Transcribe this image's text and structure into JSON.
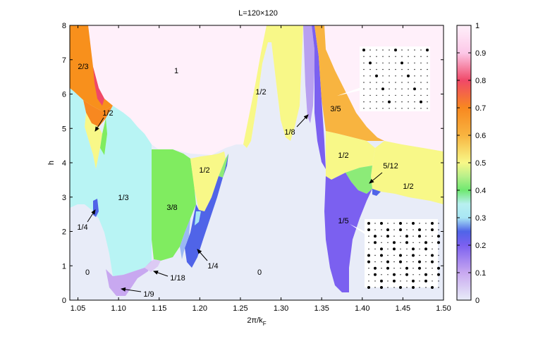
{
  "chart_data": {
    "type": "heatmap",
    "title": "L=120×120",
    "xlabel_main": "2π/k",
    "xlabel_sub": "F",
    "ylabel": "h",
    "xlim": [
      1.04,
      1.5
    ],
    "ylim": [
      0,
      8
    ],
    "x_ticks": [
      "1.05",
      "1.10",
      "1.15",
      "1.20",
      "1.25",
      "1.30",
      "1.35",
      "1.40",
      "1.45",
      "1.50"
    ],
    "y_ticks": [
      "0",
      "1",
      "2",
      "3",
      "4",
      "5",
      "6",
      "7",
      "8"
    ],
    "colorbar": {
      "min": 0,
      "max": 1,
      "ticks": [
        "0",
        "0.1",
        "0.2",
        "0.3",
        "0.4",
        "0.5",
        "0.6",
        "0.7",
        "0.8",
        "0.9",
        "1"
      ],
      "stops": [
        {
          "v": 0.0,
          "color": "#e8ecf8"
        },
        {
          "v": 0.1,
          "color": "#c8a8f0"
        },
        {
          "v": 0.2,
          "color": "#7b60f0"
        },
        {
          "v": 0.25,
          "color": "#5064e8"
        },
        {
          "v": 0.3,
          "color": "#a8e6f4"
        },
        {
          "v": 0.35,
          "color": "#b8f0f0"
        },
        {
          "v": 0.4,
          "color": "#6ee870"
        },
        {
          "v": 0.45,
          "color": "#b8f08a"
        },
        {
          "v": 0.5,
          "color": "#f8f888"
        },
        {
          "v": 0.6,
          "color": "#f8b440"
        },
        {
          "v": 0.7,
          "color": "#f88820"
        },
        {
          "v": 0.8,
          "color": "#f04868"
        },
        {
          "v": 0.9,
          "color": "#fcc8e8"
        },
        {
          "v": 1.0,
          "color": "#fff0fa"
        }
      ]
    },
    "regions": [
      {
        "label": "1",
        "value": 1.0,
        "color": "#fff0fa"
      },
      {
        "label": "2/3",
        "value": 0.667,
        "color": "#f8901c"
      },
      {
        "label": "1/2",
        "value": 0.5,
        "color": "#f8f888"
      },
      {
        "label": "1/3",
        "value": 0.333,
        "color": "#b8f4f4"
      },
      {
        "label": "3/8",
        "value": 0.375,
        "color": "#80ec60"
      },
      {
        "label": "1/4",
        "value": 0.25,
        "color": "#5064e8"
      },
      {
        "label": "0",
        "value": 0.0,
        "color": "#e8ecf8"
      },
      {
        "label": "1/9",
        "value": 0.111,
        "color": "#c8a8f0"
      },
      {
        "label": "1/18",
        "value": 0.056,
        "color": "#dccaf4"
      },
      {
        "label": "1/8",
        "value": 0.125,
        "color": "#b8a0f0"
      },
      {
        "label": "3/5",
        "value": 0.6,
        "color": "#f8b440"
      },
      {
        "label": "5/12",
        "value": 0.417,
        "color": "#8ceb78"
      },
      {
        "label": "1/5",
        "value": 0.2,
        "color": "#7b60f0"
      }
    ],
    "annotations": {
      "one": "1",
      "two_thirds": "2/3",
      "half_a": "1/2",
      "half_b": "1/2",
      "half_c": "1/2",
      "half_d": "1/2",
      "half_e": "1/2",
      "third": "1/3",
      "three_eighths": "3/8",
      "quarter_a": "1/4",
      "quarter_b": "1/4",
      "zero_a": "0",
      "zero_b": "0",
      "ninth": "1/9",
      "eighteenth": "1/18",
      "eighth": "1/8",
      "three_fifths": "3/5",
      "five_twelfths": "5/12",
      "fifth": "1/5"
    },
    "legend": "none",
    "grid": false
  }
}
